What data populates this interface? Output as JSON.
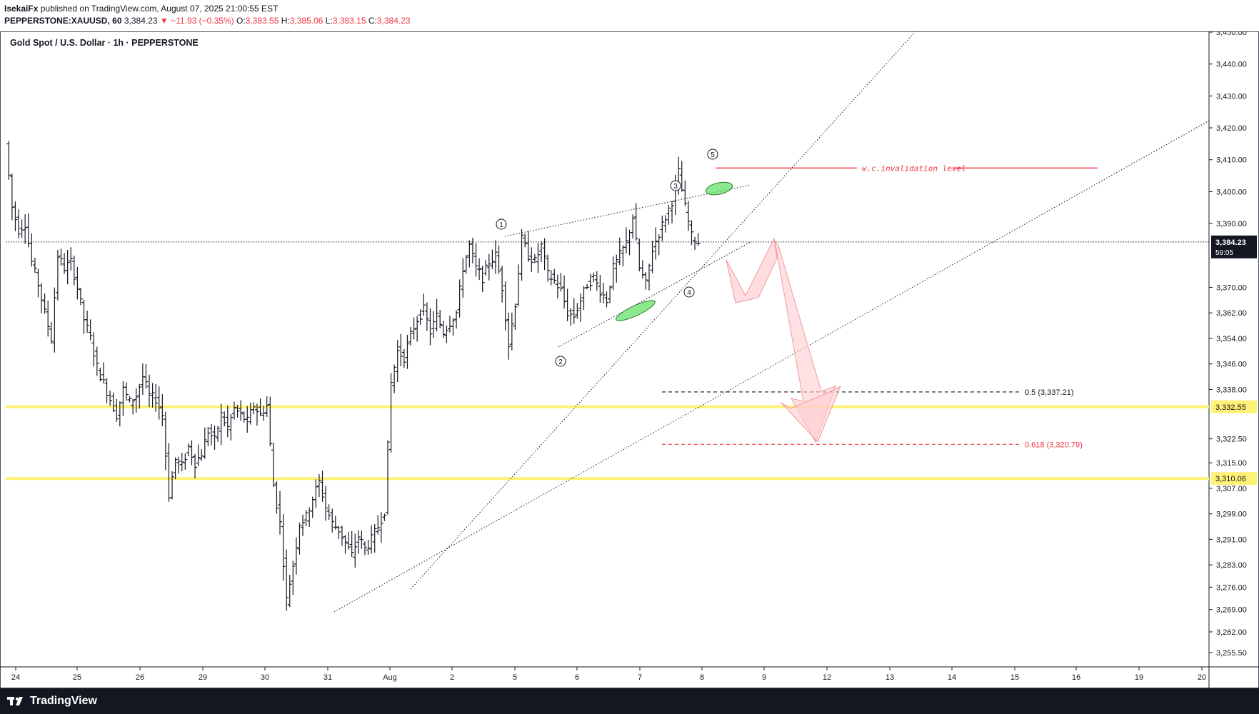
{
  "header": {
    "author": "IsekaiFx",
    "published_text": "published on TradingView.com, August 07, 2025 21:00:55 EST",
    "symbol": "PEPPERSTONE:XAUUSD, 60",
    "last": "3,384.23",
    "arrow": "▼",
    "change": "−11.93 (−0.35%)",
    "o_label": "O:",
    "o_value": "3,383.55",
    "h_label": "H:",
    "h_value": "3,385.06",
    "l_label": "L:",
    "l_value": "3,383.15",
    "c_label": "C:",
    "c_value": "3,384.23"
  },
  "footer": {
    "brand": "TradingView",
    "logo_icon": "tradingview-logo-icon"
  },
  "colors": {
    "candle": "#131722",
    "support": "#fff176",
    "accent_red": "#f23645",
    "green_marker": "#66e066",
    "projection_fill": "#ffcdd2",
    "projection_stroke": "#ef9a9a"
  },
  "chart_data": {
    "type": "candlestick",
    "title": "Gold Spot / U.S. Dollar · 1h · PEPPERSTONE",
    "x_tick_labels": [
      "24",
      "25",
      "26",
      "29",
      "30",
      "31",
      "Aug",
      "2",
      "5",
      "6",
      "7",
      "8",
      "9",
      "12",
      "13",
      "14",
      "15",
      "16",
      "19",
      "20"
    ],
    "y_tick_labels": [
      "3,450.00",
      "3,440.00",
      "3,430.00",
      "3,420.00",
      "3,410.00",
      "3,400.00",
      "3,390.00",
      "3,370.00",
      "3,362.00",
      "3,354.00",
      "3,346.00",
      "3,338.00",
      "3,322.50",
      "3,315.00",
      "3,307.00",
      "3,299.00",
      "3,291.00",
      "3,283.00",
      "3,276.00",
      "3,269.00",
      "3,262.00",
      "3,255.50"
    ],
    "y_tick_values": [
      3450,
      3440,
      3430,
      3420,
      3410,
      3400,
      3390,
      3370,
      3362,
      3354,
      3346,
      3338,
      3322.5,
      3315,
      3307,
      3299,
      3291,
      3283,
      3276,
      3269,
      3262,
      3255.5
    ],
    "ylim": [
      3252.0,
      3452.0
    ],
    "price_path": [
      [
        0,
        3415
      ],
      [
        1,
        3395
      ],
      [
        2,
        3388
      ],
      [
        3,
        3390
      ],
      [
        4,
        3378
      ],
      [
        5,
        3371
      ],
      [
        6,
        3362
      ],
      [
        7,
        3354
      ],
      [
        8,
        3380
      ],
      [
        9,
        3376
      ],
      [
        10,
        3378
      ],
      [
        11,
        3370
      ],
      [
        12,
        3360
      ],
      [
        13,
        3354
      ],
      [
        14,
        3345
      ],
      [
        15,
        3340
      ],
      [
        16,
        3335
      ],
      [
        17,
        3330
      ],
      [
        18,
        3338
      ],
      [
        19,
        3334
      ],
      [
        20,
        3336
      ],
      [
        21,
        3342
      ],
      [
        22,
        3336
      ],
      [
        23,
        3335
      ],
      [
        24,
        3330
      ],
      [
        25,
        3305
      ],
      [
        26,
        3316
      ],
      [
        27,
        3314
      ],
      [
        28,
        3320
      ],
      [
        29,
        3315
      ],
      [
        30,
        3318
      ],
      [
        31,
        3325
      ],
      [
        32,
        3322
      ],
      [
        33,
        3330
      ],
      [
        34,
        3326
      ],
      [
        35,
        3332
      ],
      [
        36,
        3330
      ],
      [
        37,
        3328
      ],
      [
        38,
        3333
      ],
      [
        39,
        3330
      ],
      [
        40,
        3333
      ],
      [
        41,
        3308
      ],
      [
        42,
        3296
      ],
      [
        43,
        3272
      ],
      [
        44,
        3283
      ],
      [
        45,
        3296
      ],
      [
        46,
        3298
      ],
      [
        47,
        3304
      ],
      [
        48,
        3309
      ],
      [
        49,
        3301
      ],
      [
        50,
        3296
      ],
      [
        51,
        3294
      ],
      [
        52,
        3290
      ],
      [
        53,
        3286
      ],
      [
        54,
        3292
      ],
      [
        55,
        3288
      ],
      [
        56,
        3291
      ],
      [
        57,
        3295
      ],
      [
        58,
        3300
      ],
      [
        59,
        3340
      ],
      [
        60,
        3350
      ],
      [
        61,
        3348
      ],
      [
        62,
        3355
      ],
      [
        63,
        3360
      ],
      [
        64,
        3363
      ],
      [
        65,
        3356
      ],
      [
        66,
        3361
      ],
      [
        67,
        3356
      ],
      [
        68,
        3359
      ],
      [
        69,
        3362
      ],
      [
        70,
        3376
      ],
      [
        71,
        3383
      ],
      [
        72,
        3376
      ],
      [
        73,
        3373
      ],
      [
        74,
        3378
      ],
      [
        75,
        3380
      ],
      [
        76,
        3370
      ],
      [
        77,
        3352
      ],
      [
        78,
        3365
      ],
      [
        79,
        3385
      ],
      [
        80,
        3380
      ],
      [
        81,
        3378
      ],
      [
        82,
        3383
      ],
      [
        83,
        3374
      ],
      [
        84,
        3372
      ],
      [
        85,
        3369
      ],
      [
        86,
        3362
      ],
      [
        87,
        3361
      ],
      [
        88,
        3366
      ],
      [
        89,
        3371
      ],
      [
        90,
        3373
      ],
      [
        91,
        3369
      ],
      [
        92,
        3366
      ],
      [
        93,
        3376
      ],
      [
        94,
        3380
      ],
      [
        95,
        3384
      ],
      [
        96,
        3392
      ],
      [
        97,
        3376
      ],
      [
        98,
        3371
      ],
      [
        99,
        3382
      ],
      [
        100,
        3387
      ],
      [
        101,
        3392
      ],
      [
        102,
        3397
      ],
      [
        103,
        3406
      ],
      [
        104,
        3395
      ],
      [
        105,
        3386
      ],
      [
        106,
        3384.23
      ]
    ],
    "horizontal_levels": [
      {
        "price": 3384.23,
        "label": "3,384.23",
        "sublabel": "59:05",
        "style": "current-price"
      },
      {
        "price": 3332.55,
        "label": "3,332.55",
        "style": "support"
      },
      {
        "price": 3310.06,
        "label": "3,310.06",
        "style": "support"
      },
      {
        "price": 3407.4,
        "label": "w.c.invalidation level",
        "style": "invalidation"
      },
      {
        "price": 3337.21,
        "label": "0.5 (3,337.21)",
        "style": "fib-0.5"
      },
      {
        "price": 3320.79,
        "label": "0.618 (3,320.79)",
        "style": "fib-0.618"
      }
    ],
    "wave_labels": [
      {
        "label": "1",
        "x": 73,
        "price": 3390
      },
      {
        "label": "2",
        "x": 77,
        "price": 3347
      },
      {
        "label": "3",
        "x": 96,
        "price": 3397
      },
      {
        "label": "4",
        "x": 99,
        "price": 3370
      },
      {
        "label": "5",
        "x": 103,
        "price": 3410
      }
    ],
    "annotations": [
      "w.c.invalidation level",
      "0.5 (3,337.21)",
      "0.618 (3,320.79)"
    ]
  }
}
